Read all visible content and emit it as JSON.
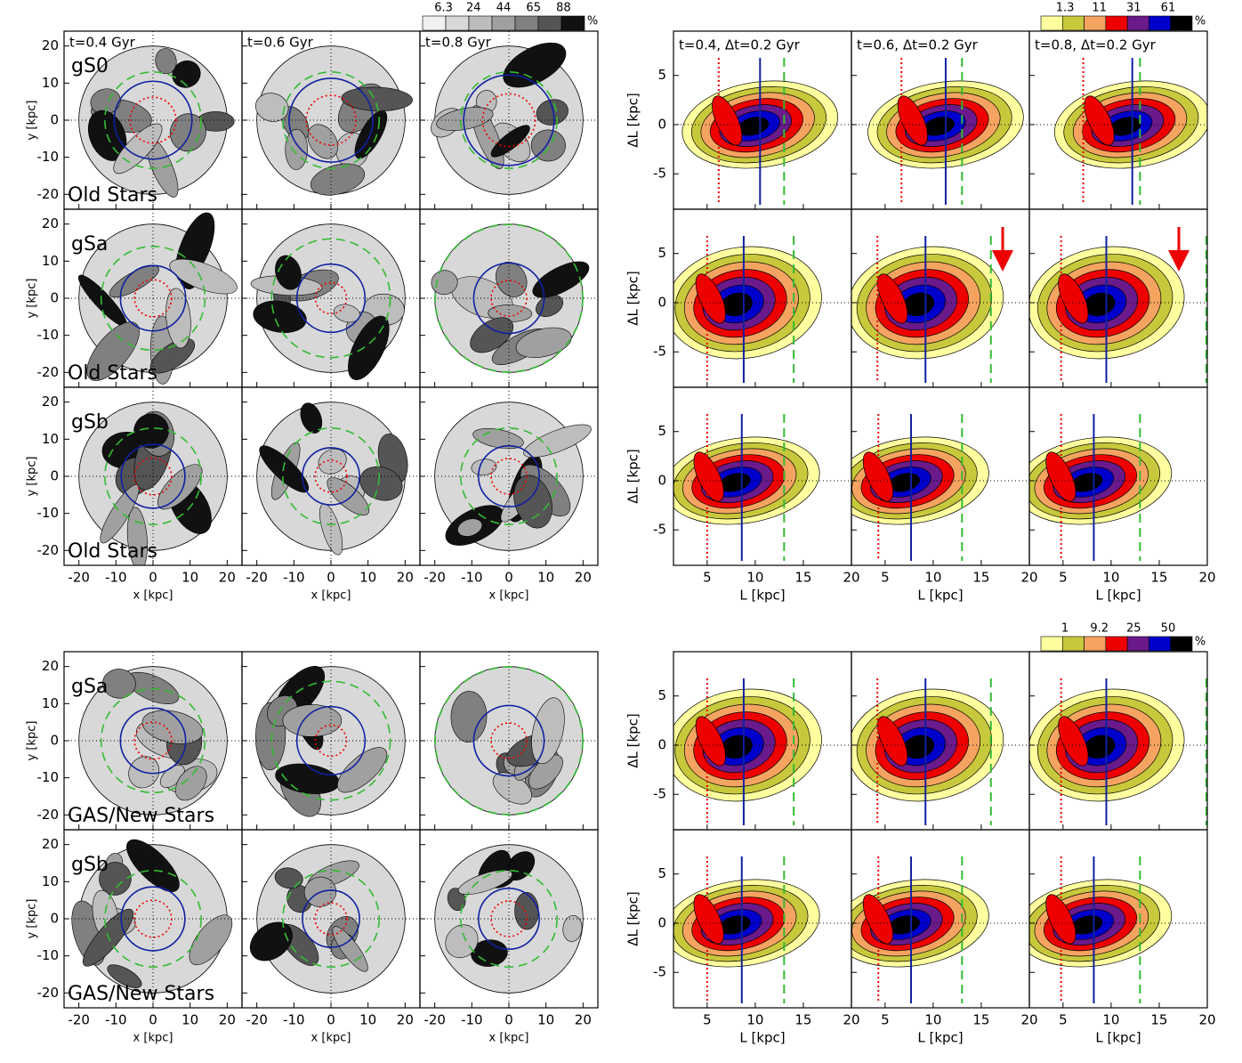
{
  "colorbars": [
    {
      "labels": [
        6.3,
        24,
        44,
        65,
        88
      ],
      "unit": "%"
    },
    {
      "labels": [
        1.3,
        11,
        31,
        61
      ],
      "unit": "%"
    },
    {
      "labels": [
        1.0,
        9.2,
        25,
        50
      ],
      "unit": "%"
    }
  ],
  "map_axes": {
    "xlim": [
      -24,
      24
    ],
    "ylim": [
      -24,
      24
    ],
    "xticks": [
      -20,
      -10,
      0,
      10,
      20
    ],
    "yticks": [
      -20,
      -10,
      0,
      10,
      20
    ],
    "xlabel": "x [kpc]",
    "ylabel": "y [kpc]"
  },
  "dl_axes": {
    "xlim": [
      1.5,
      20
    ],
    "ylim": [
      -8.6,
      9.5
    ],
    "xticks": [
      5,
      10,
      15,
      20
    ],
    "yticks": [
      -5,
      0,
      5
    ],
    "xlabel": "L [kpc]",
    "ylabel": "ΔL [kpc]"
  },
  "times": [
    "t=0.4 Gyr",
    "t=0.6 Gyr",
    "t=0.8 Gyr"
  ],
  "dl_times": [
    "t=0.4, Δt=0.2 Gyr",
    "t=0.6, Δt=0.2 Gyr",
    "t=0.8, Δt=0.2 Gyr"
  ],
  "rows": [
    {
      "galaxy": "gS0",
      "component": "Old Stars",
      "resonances": [
        [
          6.2,
          10.5,
          13
        ],
        [
          6.7,
          11.3,
          13
        ],
        [
          7.1,
          12.2,
          13
        ]
      ]
    },
    {
      "galaxy": "gSa",
      "component": "Old Stars",
      "resonances": [
        [
          5.0,
          8.8,
          14.0
        ],
        [
          4.2,
          9.2,
          16.0
        ],
        [
          4.8,
          9.5,
          19.9
        ]
      ]
    },
    {
      "galaxy": "gSb",
      "component": "Old Stars",
      "resonances": [
        [
          5.0,
          8.6,
          13.0
        ],
        [
          4.3,
          7.7,
          13.0
        ],
        [
          4.8,
          8.2,
          13.0
        ]
      ]
    },
    {
      "galaxy": "gSa",
      "component": "GAS/New Stars",
      "resonances": [
        [
          5.0,
          8.8,
          14.0
        ],
        [
          4.2,
          9.2,
          16.0
        ],
        [
          4.8,
          9.5,
          19.9
        ]
      ]
    },
    {
      "galaxy": "gSb",
      "component": "GAS/New Stars",
      "resonances": [
        [
          5.0,
          8.6,
          13.0
        ],
        [
          4.3,
          7.7,
          13.0
        ],
        [
          4.8,
          8.2,
          13.0
        ]
      ]
    }
  ]
}
